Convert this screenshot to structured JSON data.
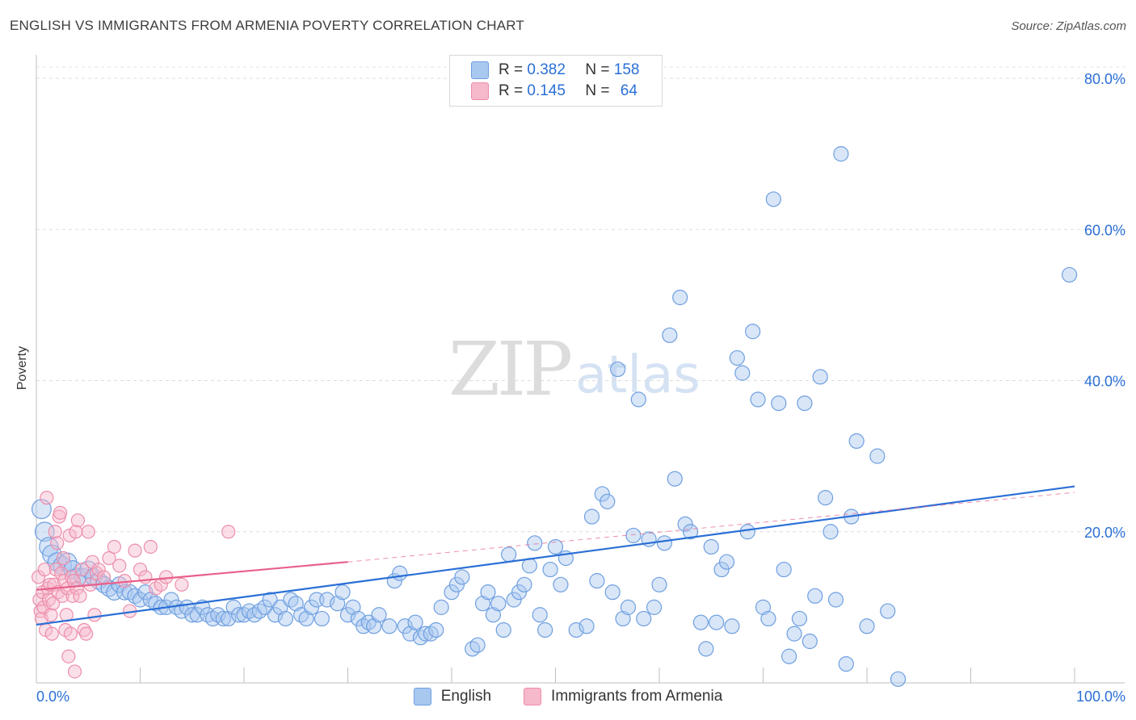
{
  "title": "ENGLISH VS IMMIGRANTS FROM ARMENIA POVERTY CORRELATION CHART",
  "source": "Source: ZipAtlas.com",
  "watermark": {
    "zip": "ZIP",
    "atlas": "atlas"
  },
  "legend": {
    "rows": [
      {
        "r_label": "R =",
        "r_value": "0.382",
        "n_label": "N =",
        "n_value": "158",
        "color": "#a9c8f0"
      },
      {
        "r_label": "R =",
        "r_value": "0.145",
        "n_label": "N =",
        "n_value": "64",
        "color": "#f6b8cb"
      }
    ]
  },
  "bottom_legend": [
    {
      "label": "English",
      "color": "#a9c8f0"
    },
    {
      "label": "Immigrants from Armenia",
      "color": "#f6b8cb"
    }
  ],
  "chart_data": {
    "type": "scatter",
    "title": "ENGLISH VS IMMIGRANTS FROM ARMENIA POVERTY CORRELATION CHART",
    "xlabel": "",
    "ylabel": "Poverty",
    "xlim": [
      0,
      100
    ],
    "ylim": [
      0,
      82
    ],
    "x_tick_labels": [
      "0.0%",
      "100.0%"
    ],
    "y_ticks": [
      20,
      40,
      60,
      80
    ],
    "y_tick_labels": [
      "20.0%",
      "40.0%",
      "60.0%",
      "80.0%"
    ],
    "grid": true,
    "colors": {
      "English": "#2a6fd6",
      "English_fill": "#a9c8f0",
      "Armenia": "#e8608a",
      "Armenia_fill": "#f6b8cb",
      "axis_text": "#2a6fd6"
    },
    "series": [
      {
        "name": "English",
        "trend": {
          "x0": 0,
          "y0": 7.7,
          "x1": 100,
          "y1": 26.0,
          "dash_to_x": 100,
          "dash_to_y": 25.2,
          "solid_until": 100
        },
        "points": [
          [
            0.5,
            23
          ],
          [
            0.8,
            20
          ],
          [
            1.2,
            18
          ],
          [
            1.5,
            17
          ],
          [
            2,
            16
          ],
          [
            2.5,
            15.5
          ],
          [
            3,
            16
          ],
          [
            3.5,
            15
          ],
          [
            4,
            14
          ],
          [
            4.5,
            14
          ],
          [
            5,
            15
          ],
          [
            5.5,
            14
          ],
          [
            6,
            13.5
          ],
          [
            6.5,
            13
          ],
          [
            7,
            12.5
          ],
          [
            7.5,
            12
          ],
          [
            8,
            13
          ],
          [
            8.5,
            12
          ],
          [
            9,
            12
          ],
          [
            9.5,
            11.5
          ],
          [
            10,
            11
          ],
          [
            10.5,
            12
          ],
          [
            11,
            11
          ],
          [
            11.5,
            10.5
          ],
          [
            12,
            10
          ],
          [
            12.5,
            10
          ],
          [
            13,
            11
          ],
          [
            13.5,
            10
          ],
          [
            14,
            9.5
          ],
          [
            14.5,
            10
          ],
          [
            15,
            9
          ],
          [
            15.5,
            9
          ],
          [
            16,
            10
          ],
          [
            16.5,
            9
          ],
          [
            17,
            8.5
          ],
          [
            17.5,
            9
          ],
          [
            18,
            8.5
          ],
          [
            18.5,
            8.5
          ],
          [
            19,
            10
          ],
          [
            19.5,
            9
          ],
          [
            20,
            9
          ],
          [
            20.5,
            9.5
          ],
          [
            21,
            9
          ],
          [
            21.5,
            9.5
          ],
          [
            22,
            10
          ],
          [
            22.5,
            11
          ],
          [
            23,
            9
          ],
          [
            23.5,
            10
          ],
          [
            24,
            8.5
          ],
          [
            24.5,
            11
          ],
          [
            25,
            10.5
          ],
          [
            25.5,
            9
          ],
          [
            26,
            8.5
          ],
          [
            26.5,
            10
          ],
          [
            27,
            11
          ],
          [
            27.5,
            8.5
          ],
          [
            28,
            11
          ],
          [
            29,
            10.5
          ],
          [
            29.5,
            12
          ],
          [
            30,
            9
          ],
          [
            30.5,
            10
          ],
          [
            31,
            8.5
          ],
          [
            31.5,
            7.5
          ],
          [
            32,
            8
          ],
          [
            32.5,
            7.5
          ],
          [
            33,
            9
          ],
          [
            34,
            7.5
          ],
          [
            34.5,
            13.5
          ],
          [
            35,
            14.5
          ],
          [
            35.5,
            7.5
          ],
          [
            36,
            6.5
          ],
          [
            36.5,
            8
          ],
          [
            37,
            6
          ],
          [
            37.5,
            6.5
          ],
          [
            38,
            6.5
          ],
          [
            38.5,
            7
          ],
          [
            39,
            10
          ],
          [
            40,
            12
          ],
          [
            40.5,
            13
          ],
          [
            41,
            14
          ],
          [
            42,
            4.5
          ],
          [
            42.5,
            5
          ],
          [
            43,
            10.5
          ],
          [
            43.5,
            12
          ],
          [
            44,
            9
          ],
          [
            44.5,
            10.5
          ],
          [
            45,
            7
          ],
          [
            45.5,
            17
          ],
          [
            46,
            11
          ],
          [
            46.5,
            12
          ],
          [
            47,
            13
          ],
          [
            47.5,
            15.5
          ],
          [
            48,
            18.5
          ],
          [
            48.5,
            9
          ],
          [
            49,
            7
          ],
          [
            49.5,
            15
          ],
          [
            50,
            18
          ],
          [
            50.5,
            13
          ],
          [
            51,
            16.5
          ],
          [
            52,
            7
          ],
          [
            53,
            7.5
          ],
          [
            53.5,
            22
          ],
          [
            54,
            13.5
          ],
          [
            54.5,
            25
          ],
          [
            55,
            24
          ],
          [
            55.5,
            12
          ],
          [
            56,
            41.5
          ],
          [
            56.5,
            8.5
          ],
          [
            57,
            10
          ],
          [
            57.5,
            19.5
          ],
          [
            58,
            37.5
          ],
          [
            58.5,
            8.5
          ],
          [
            59,
            19
          ],
          [
            59.5,
            10
          ],
          [
            60,
            13
          ],
          [
            60.5,
            18.5
          ],
          [
            61,
            46
          ],
          [
            61.5,
            27
          ],
          [
            62,
            51
          ],
          [
            62.5,
            21
          ],
          [
            63,
            20
          ],
          [
            64,
            8
          ],
          [
            64.5,
            4.5
          ],
          [
            65,
            18
          ],
          [
            65.5,
            8
          ],
          [
            66,
            15
          ],
          [
            66.5,
            16
          ],
          [
            67,
            7.5
          ],
          [
            67.5,
            43
          ],
          [
            68,
            41
          ],
          [
            68.5,
            20
          ],
          [
            69,
            46.5
          ],
          [
            69.5,
            37.5
          ],
          [
            70,
            10
          ],
          [
            70.5,
            8.5
          ],
          [
            71,
            64
          ],
          [
            71.5,
            37
          ],
          [
            72,
            15
          ],
          [
            72.5,
            3.5
          ],
          [
            73,
            6.5
          ],
          [
            73.5,
            8.5
          ],
          [
            74,
            37
          ],
          [
            74.5,
            5.5
          ],
          [
            75,
            11.5
          ],
          [
            75.5,
            40.5
          ],
          [
            76,
            24.5
          ],
          [
            76.5,
            20
          ],
          [
            77,
            11
          ],
          [
            77.5,
            70
          ],
          [
            78,
            2.5
          ],
          [
            78.5,
            22
          ],
          [
            79,
            32
          ],
          [
            80,
            7.5
          ],
          [
            81,
            30
          ],
          [
            82,
            9.5
          ],
          [
            83,
            0.5
          ],
          [
            99.5,
            54
          ]
        ]
      },
      {
        "name": "Immigrants from Armenia",
        "trend": {
          "x0": 0,
          "y0": 12.3,
          "x1": 30,
          "y1": 16.0,
          "dash_to_x": 100,
          "dash_to_y": 25.2,
          "solid_until": 30
        },
        "points": [
          [
            0.2,
            14
          ],
          [
            0.3,
            11
          ],
          [
            0.4,
            9.5
          ],
          [
            0.5,
            8.5
          ],
          [
            0.6,
            12
          ],
          [
            0.7,
            10
          ],
          [
            0.8,
            15
          ],
          [
            0.9,
            7
          ],
          [
            1,
            24.5
          ],
          [
            1.1,
            12.5
          ],
          [
            1.2,
            11
          ],
          [
            1.3,
            13
          ],
          [
            1.4,
            9
          ],
          [
            1.5,
            6.5
          ],
          [
            1.6,
            10.5
          ],
          [
            1.7,
            13
          ],
          [
            1.8,
            20
          ],
          [
            1.9,
            15
          ],
          [
            2,
            18.5
          ],
          [
            2.1,
            12
          ],
          [
            2.2,
            22
          ],
          [
            2.3,
            22.5
          ],
          [
            2.4,
            14.5
          ],
          [
            2.5,
            11.5
          ],
          [
            2.6,
            16.5
          ],
          [
            2.7,
            13.5
          ],
          [
            2.8,
            7
          ],
          [
            2.9,
            9
          ],
          [
            3,
            12.5
          ],
          [
            3.1,
            3.5
          ],
          [
            3.2,
            19.5
          ],
          [
            3.3,
            6.5
          ],
          [
            3.4,
            14
          ],
          [
            3.5,
            11.5
          ],
          [
            3.6,
            13.5
          ],
          [
            3.7,
            1.5
          ],
          [
            3.8,
            20
          ],
          [
            3.9,
            12.5
          ],
          [
            4,
            21.5
          ],
          [
            4.2,
            11.5
          ],
          [
            4.4,
            15
          ],
          [
            4.6,
            7
          ],
          [
            4.8,
            6.5
          ],
          [
            5,
            20
          ],
          [
            5.2,
            13
          ],
          [
            5.4,
            16
          ],
          [
            5.6,
            9
          ],
          [
            5.8,
            14.5
          ],
          [
            6,
            15
          ],
          [
            6.5,
            14
          ],
          [
            7,
            16.5
          ],
          [
            7.5,
            18
          ],
          [
            8,
            15.5
          ],
          [
            8.5,
            13.5
          ],
          [
            9,
            9.5
          ],
          [
            9.5,
            17.5
          ],
          [
            10,
            15
          ],
          [
            10.5,
            14
          ],
          [
            11,
            18
          ],
          [
            11.5,
            12.5
          ],
          [
            12,
            13
          ],
          [
            12.5,
            14
          ],
          [
            14,
            13
          ],
          [
            18.5,
            20
          ]
        ]
      }
    ]
  }
}
